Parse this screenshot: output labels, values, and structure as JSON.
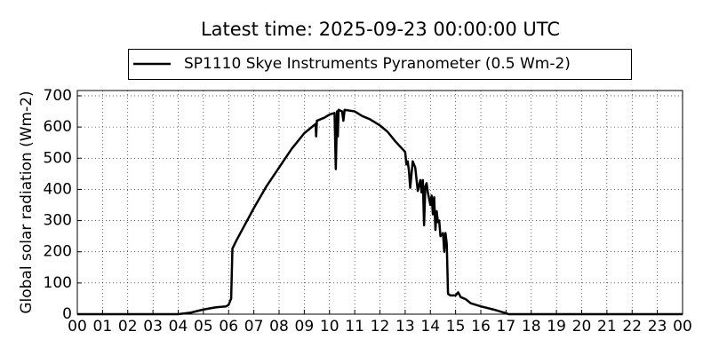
{
  "chart_data": {
    "type": "line",
    "title": "Latest time: 2025-09-23 00:00:00 UTC",
    "y_label": "Global solar radiation (Wm-2)",
    "x": [
      0,
      4.0,
      4.5,
      5.0,
      5.5,
      5.9,
      6.0,
      6.1,
      6.15,
      6.3,
      6.6,
      7.0,
      7.5,
      8.0,
      8.5,
      9.0,
      9.3,
      9.45,
      9.47,
      9.5,
      9.8,
      10.0,
      10.2,
      10.25,
      10.3,
      10.33,
      10.36,
      10.5,
      10.55,
      10.6,
      11.0,
      11.3,
      11.6,
      12.0,
      12.3,
      12.6,
      13.0,
      13.05,
      13.1,
      13.15,
      13.2,
      13.3,
      13.4,
      13.5,
      13.6,
      13.65,
      13.7,
      13.75,
      13.8,
      13.85,
      13.9,
      14.0,
      14.05,
      14.1,
      14.15,
      14.2,
      14.25,
      14.3,
      14.35,
      14.4,
      14.5,
      14.55,
      14.6,
      14.65,
      14.7,
      14.8,
      15.0,
      15.1,
      15.2,
      15.4,
      15.6,
      16.0,
      16.5,
      17.0,
      17.1,
      24.0
    ],
    "series": [
      {
        "name": "SP1110 Skye Instruments Pyranometer (0.5 Wm-2)",
        "color": "#000000",
        "values": [
          0,
          0,
          5,
          15,
          22,
          25,
          30,
          50,
          210,
          235,
          280,
          340,
          410,
          470,
          530,
          580,
          600,
          610,
          570,
          620,
          630,
          640,
          645,
          465,
          650,
          570,
          655,
          650,
          620,
          655,
          650,
          635,
          625,
          605,
          585,
          555,
          520,
          480,
          490,
          460,
          405,
          490,
          470,
          395,
          430,
          390,
          430,
          285,
          410,
          420,
          390,
          350,
          380,
          320,
          375,
          270,
          330,
          295,
          300,
          250,
          260,
          200,
          260,
          225,
          65,
          60,
          60,
          70,
          55,
          48,
          35,
          25,
          15,
          3,
          0,
          0
        ]
      }
    ],
    "xlim": [
      0,
      24
    ],
    "xticks": [
      {
        "value": 0,
        "label": "00"
      },
      {
        "value": 1,
        "label": "01"
      },
      {
        "value": 2,
        "label": "02"
      },
      {
        "value": 3,
        "label": "03"
      },
      {
        "value": 4,
        "label": "04"
      },
      {
        "value": 5,
        "label": "05"
      },
      {
        "value": 6,
        "label": "06"
      },
      {
        "value": 7,
        "label": "07"
      },
      {
        "value": 8,
        "label": "08"
      },
      {
        "value": 9,
        "label": "09"
      },
      10,
      11,
      12,
      13,
      14,
      15,
      16,
      17,
      18,
      19,
      20,
      21,
      22,
      23,
      {
        "value": 24,
        "label": "00"
      }
    ],
    "ylim": [
      0,
      717
    ],
    "yticks": [
      0,
      100,
      200,
      300,
      400,
      500,
      600,
      700
    ],
    "grid": true
  }
}
